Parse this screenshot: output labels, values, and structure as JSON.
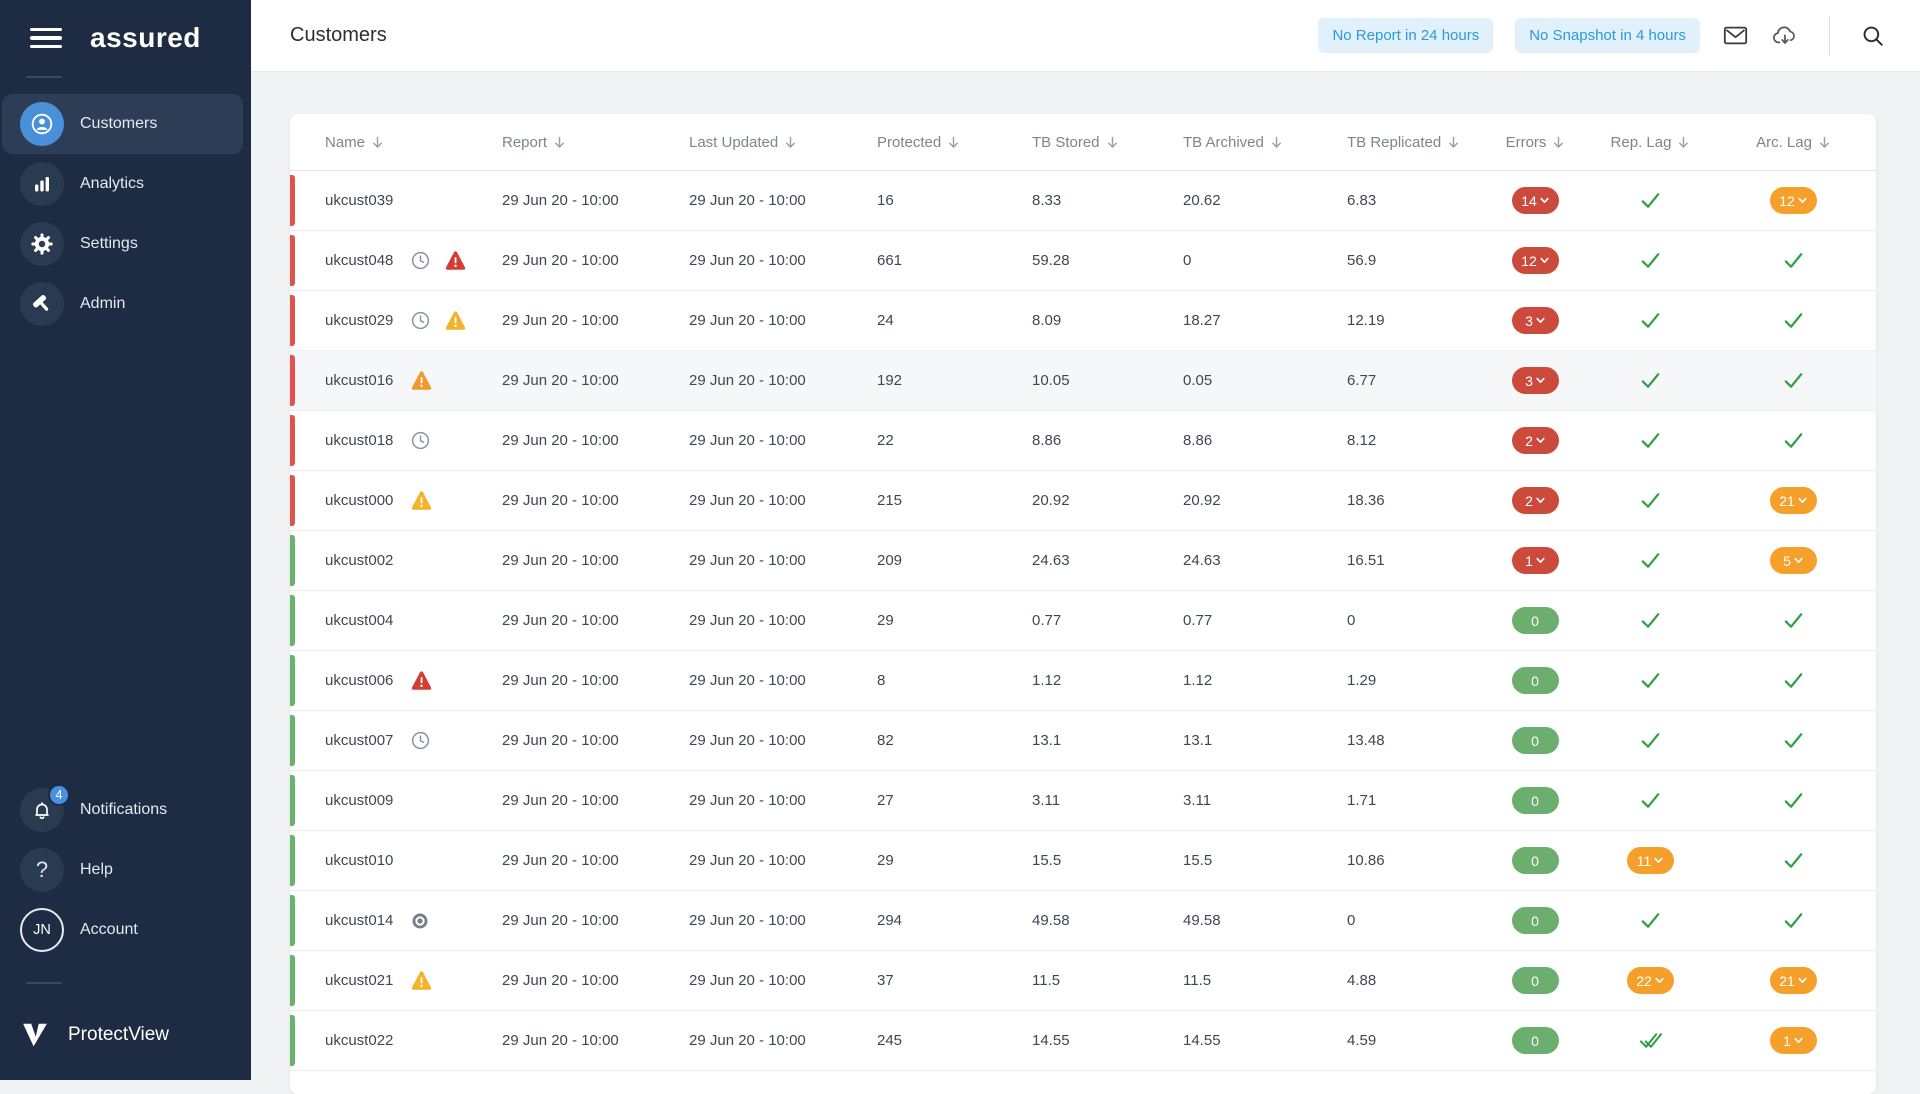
{
  "brand": {
    "logo": "assured",
    "product": "ProtectView",
    "account_initials": "JN"
  },
  "sidebar": {
    "items": [
      {
        "label": "Customers",
        "icon": "customers",
        "active": true
      },
      {
        "label": "Analytics",
        "icon": "analytics",
        "active": false
      },
      {
        "label": "Settings",
        "icon": "settings",
        "active": false
      },
      {
        "label": "Admin",
        "icon": "admin",
        "active": false
      }
    ],
    "footer_items": [
      {
        "label": "Notifications",
        "icon": "bell",
        "badge": "4"
      },
      {
        "label": "Help",
        "icon": "question"
      },
      {
        "label": "Account",
        "icon": "avatar",
        "initials": "JN"
      }
    ]
  },
  "header": {
    "title": "Customers",
    "filters": [
      {
        "label": "No Report in 24 hours"
      },
      {
        "label": "No Snapshot in 4 hours"
      }
    ],
    "icons": [
      "mail",
      "cloud-download",
      "search"
    ]
  },
  "colors": {
    "sidebar_bg": "#1d2c42",
    "sidebar_active": "#2c3d55",
    "accent_blue": "#4a90d8",
    "badge_blue": "#4a90e2",
    "filter_bg": "#e1f1fc",
    "filter_text": "#2e9ad6",
    "error_red": "#cc4a3c",
    "ok_green": "#6cae6e",
    "lag_orange": "#f5a02b",
    "check_green": "#2f9e44",
    "bar_red": "#e0524d",
    "bar_green": "#67b36b",
    "warn_red": "#d23e32",
    "warn_yellow": "#f0b42c",
    "warn_orange": "#f2992e"
  },
  "table": {
    "columns": [
      {
        "key": "name",
        "label": "Name"
      },
      {
        "key": "report",
        "label": "Report"
      },
      {
        "key": "last_updated",
        "label": "Last Updated"
      },
      {
        "key": "protected",
        "label": "Protected"
      },
      {
        "key": "tb_stored",
        "label": "TB Stored"
      },
      {
        "key": "tb_archived",
        "label": "TB Archived"
      },
      {
        "key": "tb_replicated",
        "label": "TB Replicated"
      },
      {
        "key": "errors",
        "label": "Errors"
      },
      {
        "key": "rep_lag",
        "label": "Rep. Lag"
      },
      {
        "key": "arc_lag",
        "label": "Arc. Lag"
      }
    ],
    "rows": [
      {
        "name": "ukcust039",
        "bar": "red",
        "icons": [],
        "report": "29 Jun 20 - 10:00",
        "last_updated": "29 Jun 20 - 10:00",
        "protected": "16",
        "tb_stored": "8.33",
        "tb_archived": "20.62",
        "tb_replicated": "6.83",
        "errors": {
          "value": "14",
          "level": "error"
        },
        "rep_lag": "ok",
        "arc_lag": "12",
        "highlight": false
      },
      {
        "name": "ukcust048",
        "bar": "red",
        "icons": [
          "clock",
          "warning-red"
        ],
        "report": "29 Jun 20 - 10:00",
        "last_updated": "29 Jun 20 - 10:00",
        "protected": "661",
        "tb_stored": "59.28",
        "tb_archived": "0",
        "tb_replicated": "56.9",
        "errors": {
          "value": "12",
          "level": "error"
        },
        "rep_lag": "ok",
        "arc_lag": "ok",
        "highlight": false
      },
      {
        "name": "ukcust029",
        "bar": "red",
        "icons": [
          "clock",
          "warning-yellow"
        ],
        "report": "29 Jun 20 - 10:00",
        "last_updated": "29 Jun 20 - 10:00",
        "protected": "24",
        "tb_stored": "8.09",
        "tb_archived": "18.27",
        "tb_replicated": "12.19",
        "errors": {
          "value": "3",
          "level": "error"
        },
        "rep_lag": "ok",
        "arc_lag": "ok",
        "highlight": false
      },
      {
        "name": "ukcust016",
        "bar": "red",
        "icons": [
          "warning-orange"
        ],
        "report": "29 Jun 20 - 10:00",
        "last_updated": "29 Jun 20 - 10:00",
        "protected": "192",
        "tb_stored": "10.05",
        "tb_archived": "0.05",
        "tb_replicated": "6.77",
        "errors": {
          "value": "3",
          "level": "error"
        },
        "rep_lag": "ok",
        "arc_lag": "ok",
        "highlight": true
      },
      {
        "name": "ukcust018",
        "bar": "red",
        "icons": [
          "clock"
        ],
        "report": "29 Jun 20 - 10:00",
        "last_updated": "29 Jun 20 - 10:00",
        "protected": "22",
        "tb_stored": "8.86",
        "tb_archived": "8.86",
        "tb_replicated": "8.12",
        "errors": {
          "value": "2",
          "level": "error"
        },
        "rep_lag": "ok",
        "arc_lag": "ok",
        "highlight": false
      },
      {
        "name": "ukcust000",
        "bar": "red",
        "icons": [
          "warning-yellow"
        ],
        "report": "29 Jun 20 - 10:00",
        "last_updated": "29 Jun 20 - 10:00",
        "protected": "215",
        "tb_stored": "20.92",
        "tb_archived": "20.92",
        "tb_replicated": "18.36",
        "errors": {
          "value": "2",
          "level": "error"
        },
        "rep_lag": "ok",
        "arc_lag": "21",
        "highlight": false
      },
      {
        "name": "ukcust002",
        "bar": "green",
        "icons": [],
        "report": "29 Jun 20 - 10:00",
        "last_updated": "29 Jun 20 - 10:00",
        "protected": "209",
        "tb_stored": "24.63",
        "tb_archived": "24.63",
        "tb_replicated": "16.51",
        "errors": {
          "value": "1",
          "level": "error"
        },
        "rep_lag": "ok",
        "arc_lag": "5",
        "highlight": false
      },
      {
        "name": "ukcust004",
        "bar": "green",
        "icons": [],
        "report": "29 Jun 20 - 10:00",
        "last_updated": "29 Jun 20 - 10:00",
        "protected": "29",
        "tb_stored": "0.77",
        "tb_archived": "0.77",
        "tb_replicated": "0",
        "errors": {
          "value": "0",
          "level": "ok"
        },
        "rep_lag": "ok",
        "arc_lag": "ok",
        "highlight": false
      },
      {
        "name": "ukcust006",
        "bar": "green",
        "icons": [
          "warning-red"
        ],
        "report": "29 Jun 20 - 10:00",
        "last_updated": "29 Jun 20 - 10:00",
        "protected": "8",
        "tb_stored": "1.12",
        "tb_archived": "1.12",
        "tb_replicated": "1.29",
        "errors": {
          "value": "0",
          "level": "ok"
        },
        "rep_lag": "ok",
        "arc_lag": "ok",
        "highlight": false
      },
      {
        "name": "ukcust007",
        "bar": "green",
        "icons": [
          "clock"
        ],
        "report": "29 Jun 20 - 10:00",
        "last_updated": "29 Jun 20 - 10:00",
        "protected": "82",
        "tb_stored": "13.1",
        "tb_archived": "13.1",
        "tb_replicated": "13.48",
        "errors": {
          "value": "0",
          "level": "ok"
        },
        "rep_lag": "ok",
        "arc_lag": "ok",
        "highlight": false
      },
      {
        "name": "ukcust009",
        "bar": "green",
        "icons": [],
        "report": "29 Jun 20 - 10:00",
        "last_updated": "29 Jun 20 - 10:00",
        "protected": "27",
        "tb_stored": "3.11",
        "tb_archived": "3.11",
        "tb_replicated": "1.71",
        "errors": {
          "value": "0",
          "level": "ok"
        },
        "rep_lag": "ok",
        "arc_lag": "ok",
        "highlight": false
      },
      {
        "name": "ukcust010",
        "bar": "green",
        "icons": [],
        "report": "29 Jun 20 - 10:00",
        "last_updated": "29 Jun 20 - 10:00",
        "protected": "29",
        "tb_stored": "15.5",
        "tb_archived": "15.5",
        "tb_replicated": "10.86",
        "errors": {
          "value": "0",
          "level": "ok"
        },
        "rep_lag": "11",
        "arc_lag": "ok",
        "highlight": false
      },
      {
        "name": "ukcust014",
        "bar": "green",
        "icons": [
          "target"
        ],
        "report": "29 Jun 20 - 10:00",
        "last_updated": "29 Jun 20 - 10:00",
        "protected": "294",
        "tb_stored": "49.58",
        "tb_archived": "49.58",
        "tb_replicated": "0",
        "errors": {
          "value": "0",
          "level": "ok"
        },
        "rep_lag": "ok",
        "arc_lag": "ok",
        "highlight": false
      },
      {
        "name": "ukcust021",
        "bar": "green",
        "icons": [
          "warning-yellow"
        ],
        "report": "29 Jun 20 - 10:00",
        "last_updated": "29 Jun 20 - 10:00",
        "protected": "37",
        "tb_stored": "11.5",
        "tb_archived": "11.5",
        "tb_replicated": "4.88",
        "errors": {
          "value": "0",
          "level": "ok"
        },
        "rep_lag": "22",
        "arc_lag": "21",
        "highlight": false
      },
      {
        "name": "ukcust022",
        "bar": "green",
        "icons": [],
        "report": "29 Jun 20 - 10:00",
        "last_updated": "29 Jun 20 - 10:00",
        "protected": "245",
        "tb_stored": "14.55",
        "tb_archived": "14.55",
        "tb_replicated": "4.59",
        "errors": {
          "value": "0",
          "level": "ok"
        },
        "rep_lag": "ok2",
        "arc_lag": "1",
        "highlight": false
      }
    ]
  }
}
